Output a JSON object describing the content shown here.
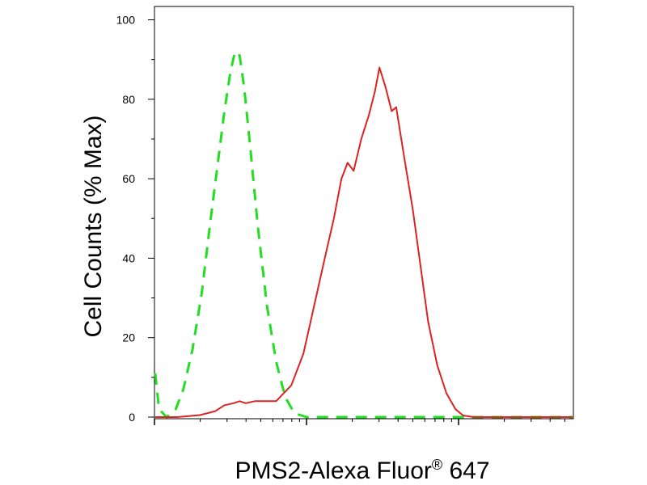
{
  "chart_data": {
    "type": "line",
    "xlabel": "PMS2-Alexa Fluor",
    "xlabel_superscript": "®",
    "xlabel_suffix": " 647",
    "ylabel": "Cell Counts (% Max)",
    "x_scale": "log",
    "x_decades": 3,
    "x_tick_labels": [],
    "ylim": [
      0,
      100
    ],
    "yticks": [
      {
        "label": "0",
        "value": 0
      },
      {
        "label": "20",
        "value": 20
      },
      {
        "label": "40",
        "value": 40
      },
      {
        "label": "60",
        "value": 60
      },
      {
        "label": "80",
        "value": 80
      },
      {
        "label": "100",
        "value": 100
      }
    ],
    "grid": false,
    "legend": "none",
    "series": [
      {
        "style": "dashed",
        "color": "#22dd22",
        "points": [
          [
            0.0,
            11
          ],
          [
            0.03,
            2
          ],
          [
            0.08,
            0
          ],
          [
            0.14,
            2
          ],
          [
            0.19,
            7
          ],
          [
            0.25,
            17
          ],
          [
            0.31,
            31
          ],
          [
            0.37,
            50
          ],
          [
            0.42,
            65
          ],
          [
            0.46,
            77
          ],
          [
            0.5,
            87
          ],
          [
            0.53,
            92
          ],
          [
            0.56,
            91
          ],
          [
            0.59,
            83
          ],
          [
            0.63,
            68
          ],
          [
            0.68,
            48
          ],
          [
            0.74,
            28
          ],
          [
            0.8,
            14
          ],
          [
            0.86,
            5
          ],
          [
            0.92,
            1
          ],
          [
            1.0,
            0
          ],
          [
            1.5,
            0
          ],
          [
            2.0,
            0
          ],
          [
            2.5,
            0
          ],
          [
            3.0,
            0
          ]
        ]
      },
      {
        "style": "solid",
        "color": "#dd2222",
        "points": [
          [
            0.0,
            0
          ],
          [
            0.15,
            0
          ],
          [
            0.3,
            0.5
          ],
          [
            0.4,
            1.5
          ],
          [
            0.46,
            3
          ],
          [
            0.52,
            3.5
          ],
          [
            0.56,
            4
          ],
          [
            0.6,
            3.5
          ],
          [
            0.66,
            4
          ],
          [
            0.74,
            4
          ],
          [
            0.8,
            4
          ],
          [
            0.9,
            8
          ],
          [
            0.98,
            16
          ],
          [
            1.05,
            28
          ],
          [
            1.12,
            40
          ],
          [
            1.18,
            50
          ],
          [
            1.23,
            60
          ],
          [
            1.27,
            64
          ],
          [
            1.31,
            62
          ],
          [
            1.36,
            70
          ],
          [
            1.41,
            76
          ],
          [
            1.45,
            82
          ],
          [
            1.48,
            88
          ],
          [
            1.52,
            83
          ],
          [
            1.56,
            77
          ],
          [
            1.59,
            78
          ],
          [
            1.64,
            66
          ],
          [
            1.7,
            52
          ],
          [
            1.75,
            38
          ],
          [
            1.8,
            24
          ],
          [
            1.86,
            13
          ],
          [
            1.92,
            6
          ],
          [
            1.98,
            2
          ],
          [
            2.03,
            0.4
          ],
          [
            2.1,
            0
          ],
          [
            3.0,
            0
          ]
        ]
      }
    ]
  }
}
